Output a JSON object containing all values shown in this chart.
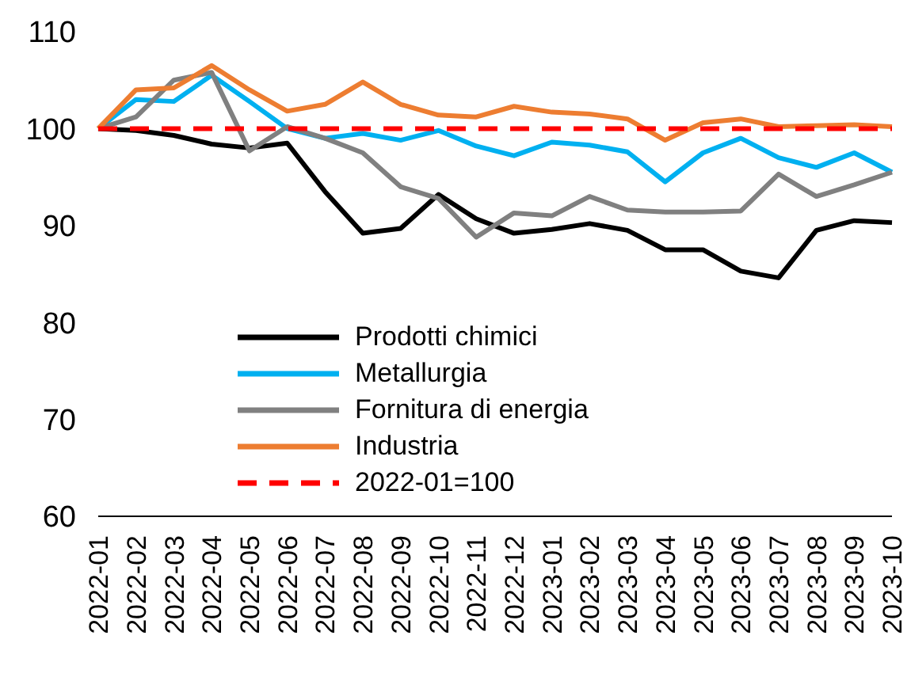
{
  "chart_data": {
    "type": "line",
    "categories": [
      "2022-01",
      "2022-02",
      "2022-03",
      "2022-04",
      "2022-05",
      "2022-06",
      "2022-07",
      "2022-08",
      "2022-09",
      "2022-10",
      "2022-11",
      "2022-12",
      "2023-01",
      "2023-02",
      "2023-03",
      "2023-04",
      "2023-05",
      "2023-06",
      "2023-07",
      "2023-08",
      "2023-09",
      "2023-10"
    ],
    "series": [
      {
        "name": "Prodotti chimici",
        "color": "#000000",
        "values": [
          100,
          99.8,
          99.3,
          98.4,
          98,
          98.5,
          93.5,
          89.2,
          89.7,
          93.2,
          90.7,
          89.2,
          89.6,
          90.2,
          89.5,
          87.5,
          87.5,
          85.3,
          84.6,
          89.5,
          90.5,
          90.3
        ]
      },
      {
        "name": "Metallurgia",
        "color": "#00b0f0",
        "values": [
          100,
          103,
          102.8,
          105.5,
          102.8,
          100,
          99,
          99.5,
          98.8,
          99.8,
          98.2,
          97.2,
          98.6,
          98.3,
          97.6,
          94.5,
          97.5,
          99,
          97,
          96,
          97.5,
          95.5
        ]
      },
      {
        "name": "Fornitura di energia",
        "color": "#808080",
        "values": [
          100,
          101.2,
          105,
          105.8,
          97.7,
          100.2,
          99,
          97.5,
          94,
          92.8,
          88.8,
          91.3,
          91,
          93,
          91.6,
          91.4,
          91.4,
          91.5,
          95.3,
          93,
          94.2,
          95.5
        ]
      },
      {
        "name": "Industria",
        "color": "#ed7d31",
        "values": [
          100,
          104,
          104.2,
          106.5,
          104,
          101.8,
          102.5,
          104.8,
          102.5,
          101.4,
          101.2,
          102.3,
          101.7,
          101.5,
          101,
          98.8,
          100.6,
          101,
          100.2,
          100.3,
          100.4,
          100.2
        ]
      },
      {
        "name": "2022-01=100",
        "color": "#ff0000",
        "line_style": "dashed",
        "values": [
          100,
          100,
          100,
          100,
          100,
          100,
          100,
          100,
          100,
          100,
          100,
          100,
          100,
          100,
          100,
          100,
          100,
          100,
          100,
          100,
          100,
          100
        ]
      }
    ],
    "ylim": [
      60,
      110
    ],
    "yticks": [
      60,
      70,
      80,
      90,
      100,
      110
    ],
    "grid": false,
    "legend": "bottom left",
    "marker": "none",
    "line_style": "solid"
  }
}
